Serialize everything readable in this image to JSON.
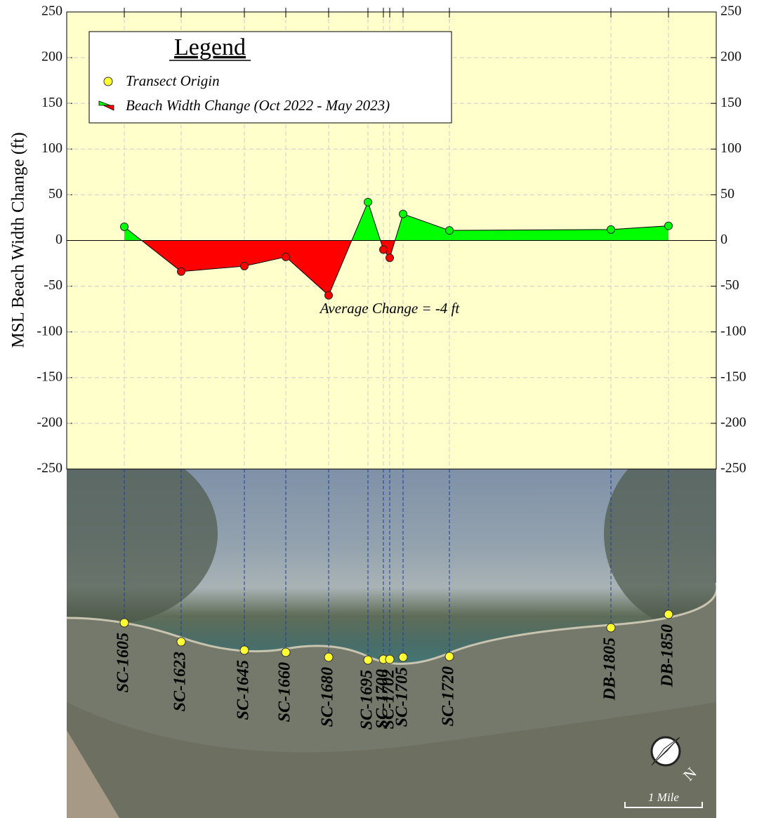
{
  "chart_data": {
    "type": "area",
    "y_label": "MSL Beach Width Change (ft)",
    "legend_title": "Legend",
    "origin_legend": "Transect Origin",
    "origin_color": "#ffff33",
    "annotation": "Average Change = -4 ft",
    "categories": [
      "SC-1605",
      "SC-1623",
      "SC-1645",
      "SC-1660",
      "SC-1680",
      "SC-1695",
      "SC-1700",
      "SC-1702",
      "SC-1705",
      "SC-1720",
      "DB-1805",
      "DB-1850"
    ],
    "series": [
      {
        "name": "Beach Width Change (Oct 2022 - May 2023)",
        "values": [
          15,
          -34,
          -28,
          -18,
          -60,
          42,
          -10,
          -19,
          29,
          11,
          12,
          16
        ],
        "positive_color": "#00ff00",
        "negative_color": "#ff0000"
      }
    ],
    "ylim": [
      -250,
      250
    ],
    "yticks": [
      -250,
      -200,
      -150,
      -100,
      -50,
      0,
      50,
      100,
      150,
      200,
      250
    ],
    "y2lim": [
      -250,
      250
    ],
    "y2ticks": [
      -250,
      -200,
      -150,
      -100,
      -50,
      0,
      50,
      100,
      150,
      200,
      250
    ],
    "grid": true,
    "map": {
      "scale_label": "1 Mile",
      "north_label": "N"
    }
  }
}
